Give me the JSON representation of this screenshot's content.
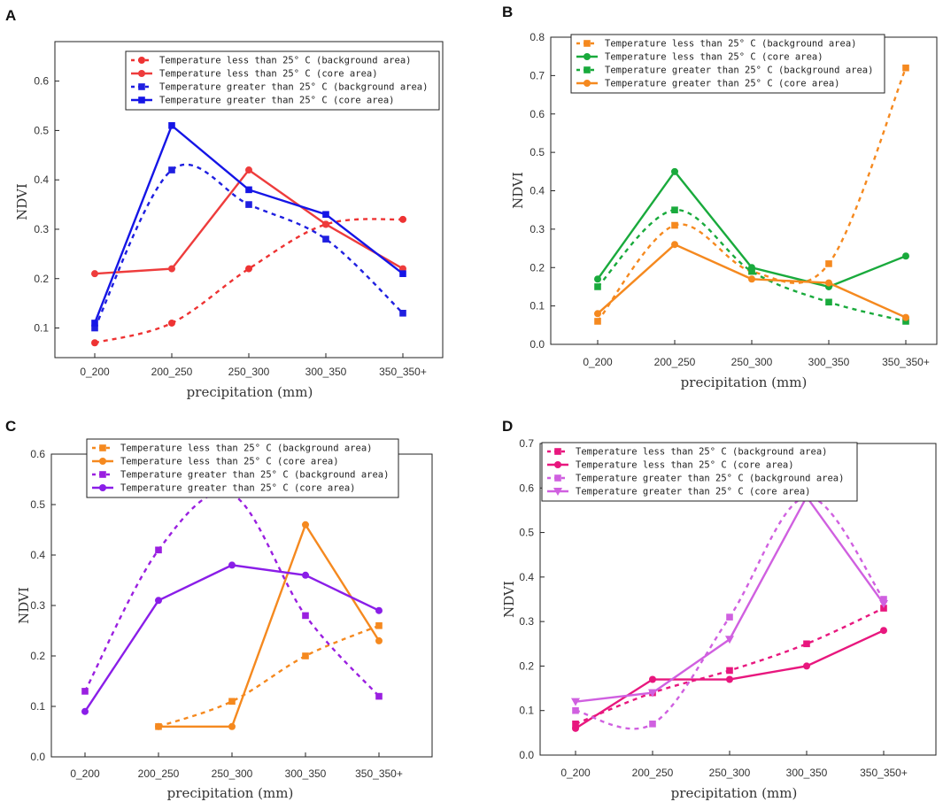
{
  "chart_data": [
    {
      "panel": "A",
      "type": "line",
      "xlabel": "precipitation (mm)",
      "ylabel": "NDVI",
      "categories": [
        "0_200",
        "200_250",
        "250_300",
        "300_350",
        "350_350+"
      ],
      "yticks": [
        "0.1",
        "0.2",
        "0.3",
        "0.4",
        "0.5",
        "0.6"
      ],
      "ylim": [
        0.04,
        0.68
      ],
      "series": [
        {
          "name": "Temperature less than 25° C (background area)",
          "color": "#ee3333",
          "dash": true,
          "marker": "circle",
          "values": [
            0.07,
            0.11,
            0.22,
            0.31,
            0.32
          ]
        },
        {
          "name": "Temperature less than 25° C (core area)",
          "color": "#ee3c3c",
          "dash": false,
          "marker": "circle",
          "values": [
            0.21,
            0.22,
            0.42,
            0.31,
            0.22
          ]
        },
        {
          "name": "Temperature greater than 25° C (background area)",
          "color": "#1f1fe0",
          "dash": true,
          "marker": "square",
          "values": [
            0.1,
            0.42,
            0.35,
            0.28,
            0.13
          ]
        },
        {
          "name": "Temperature greater than 25° C (core area)",
          "color": "#1515e6",
          "dash": false,
          "marker": "square",
          "values": [
            0.11,
            0.51,
            0.38,
            0.33,
            0.21
          ]
        }
      ]
    },
    {
      "panel": "B",
      "type": "line",
      "xlabel": "precipitation (mm)",
      "ylabel": "NDVI",
      "categories": [
        "0_200",
        "200_250",
        "250_300",
        "300_350",
        "350_350+"
      ],
      "yticks": [
        "0.0",
        "0.1",
        "0.2",
        "0.3",
        "0.4",
        "0.5",
        "0.6",
        "0.7",
        "0.8"
      ],
      "ylim": [
        0.0,
        0.8
      ],
      "series": [
        {
          "name": "Temperature less than 25° C (background area)",
          "color": "#f5891f",
          "dash": true,
          "marker": "square",
          "values": [
            0.06,
            0.31,
            0.19,
            0.21,
            0.72
          ]
        },
        {
          "name": "Temperature less than 25° C (core area)",
          "color": "#19aa3c",
          "dash": false,
          "marker": "circle",
          "values": [
            0.17,
            0.45,
            0.2,
            0.15,
            0.23
          ]
        },
        {
          "name": "Temperature greater than 25° C (background area)",
          "color": "#19aa3c",
          "dash": true,
          "marker": "square",
          "values": [
            0.15,
            0.35,
            0.19,
            0.11,
            0.06
          ]
        },
        {
          "name": "Temperature greater than 25° C (core area)",
          "color": "#f5891f",
          "dash": false,
          "marker": "circle",
          "values": [
            0.08,
            0.26,
            0.17,
            0.16,
            0.07
          ]
        }
      ]
    },
    {
      "panel": "C",
      "type": "line",
      "xlabel": "precipitation (mm)",
      "ylabel": "NDVI",
      "categories": [
        "0_200",
        "200_250",
        "250_300",
        "300_350",
        "350_350+"
      ],
      "yticks": [
        "0.0",
        "0.1",
        "0.2",
        "0.3",
        "0.4",
        "0.5",
        "0.6"
      ],
      "ylim": [
        0.0,
        0.6
      ],
      "series": [
        {
          "name": "Temperature less than 25° C (background area)",
          "color": "#f5891f",
          "dash": true,
          "marker": "square",
          "values": [
            null,
            0.06,
            0.11,
            0.2,
            0.26
          ]
        },
        {
          "name": "Temperature less than 25° C (core area)",
          "color": "#f5891f",
          "dash": false,
          "marker": "circle",
          "values": [
            null,
            0.06,
            0.06,
            0.46,
            0.23
          ]
        },
        {
          "name": "Temperature greater than 25° C (background area)",
          "color": "#9a1fe0",
          "dash": true,
          "marker": "square",
          "values": [
            0.13,
            0.41,
            0.52,
            0.28,
            0.12
          ]
        },
        {
          "name": "Temperature greater than 25° C (core area)",
          "color": "#8a1ee8",
          "dash": false,
          "marker": "circle",
          "values": [
            0.09,
            0.31,
            0.38,
            0.36,
            0.29
          ]
        }
      ]
    },
    {
      "panel": "D",
      "type": "line",
      "xlabel": "precipitation (mm)",
      "ylabel": "NDVI",
      "categories": [
        "0_200",
        "200_250",
        "250_300",
        "300_350",
        "350_350+"
      ],
      "yticks": [
        "0.0",
        "0.1",
        "0.2",
        "0.3",
        "0.4",
        "0.5",
        "0.6",
        "0.7"
      ],
      "ylim": [
        0.0,
        0.7
      ],
      "series": [
        {
          "name": "Temperature less than 25° C (background area)",
          "color": "#e8177e",
          "dash": true,
          "marker": "square",
          "values": [
            0.07,
            0.14,
            0.19,
            0.25,
            0.33
          ]
        },
        {
          "name": "Temperature less than 25° C (core area)",
          "color": "#e8177e",
          "dash": false,
          "marker": "circle",
          "values": [
            0.06,
            0.17,
            0.17,
            0.2,
            0.28
          ]
        },
        {
          "name": "Temperature greater than 25° C (background area)",
          "color": "#d060e0",
          "dash": true,
          "marker": "square",
          "values": [
            0.1,
            0.07,
            0.31,
            0.58,
            0.35
          ]
        },
        {
          "name": "Temperature greater than 25° C (core area)",
          "color": "#d060e0",
          "dash": false,
          "marker": "triangle-down",
          "values": [
            0.12,
            0.14,
            0.26,
            0.58,
            0.34
          ]
        }
      ]
    }
  ]
}
